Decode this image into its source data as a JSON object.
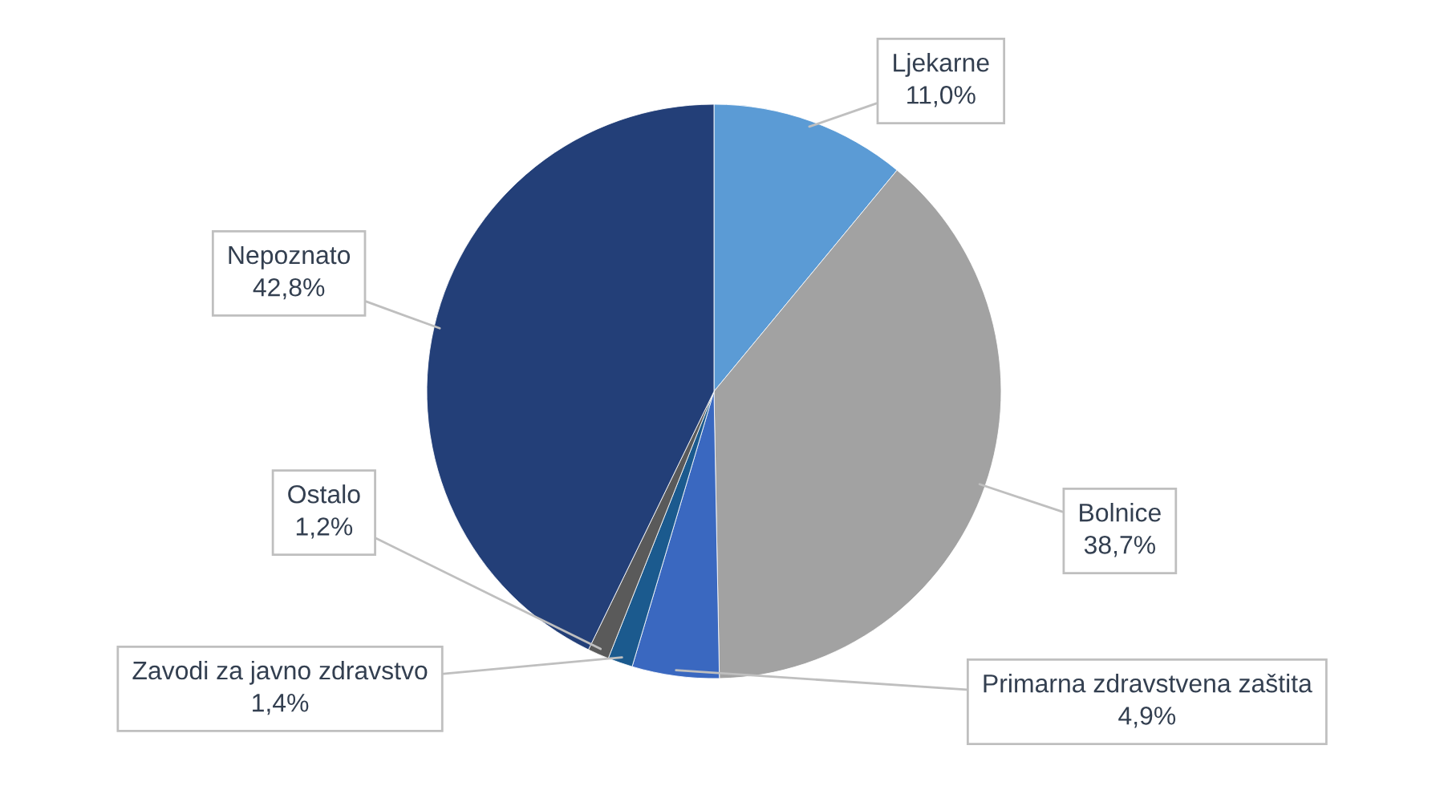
{
  "chart_data": {
    "type": "pie",
    "categories": [
      "Ljekarne",
      "Bolnice",
      "Primarna zdravstvena zaštita",
      "Zavodi za javno zdravstvo",
      "Ostalo",
      "Nepoznato"
    ],
    "values": [
      11.0,
      38.7,
      4.9,
      1.4,
      1.2,
      42.8
    ],
    "value_labels": [
      "11,0%",
      "38,7%",
      "4,9%",
      "1,4%",
      "1,2%",
      "42,8%"
    ],
    "colors": [
      "#5b9bd5",
      "#a2a2a2",
      "#3a68c0",
      "#1b5a8e",
      "#5a5a5a",
      "#233f78"
    ]
  }
}
